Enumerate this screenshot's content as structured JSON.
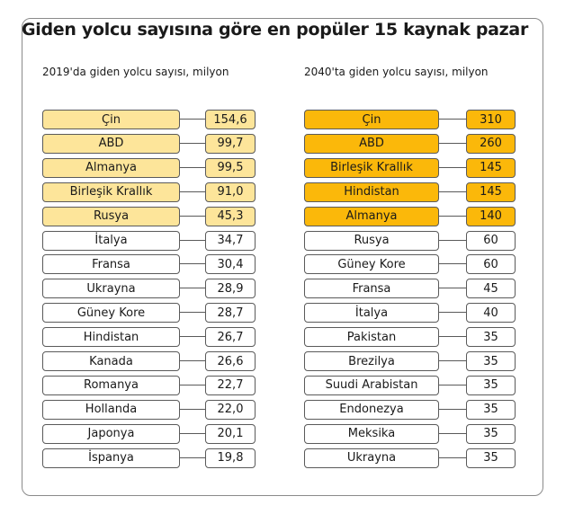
{
  "title": "Giden yolcu sayısına göre en popüler 15 kaynak pazar",
  "chart_data": [
    {
      "type": "table",
      "title": "2019'da giden yolcu sayısı, milyon",
      "highlight_color": "#FDE59A",
      "highlight_count": 5,
      "categories": [
        "Çin",
        "ABD",
        "Almanya",
        "Birleşik Krallık",
        "Rusya",
        "İtalya",
        "Fransa",
        "Ukrayna",
        "Güney Kore",
        "Hindistan",
        "Kanada",
        "Romanya",
        "Hollanda",
        "Japonya",
        "İspanya"
      ],
      "labels": [
        "154,6",
        "99,7",
        "99,5",
        "91,0",
        "45,3",
        "34,7",
        "30,4",
        "28,9",
        "28,7",
        "26,7",
        "26,6",
        "22,7",
        "22,0",
        "20,1",
        "19,8"
      ],
      "values": [
        154.6,
        99.7,
        99.5,
        91.0,
        45.3,
        34.7,
        30.4,
        28.9,
        28.7,
        26.7,
        26.6,
        22.7,
        22.0,
        20.1,
        19.8
      ]
    },
    {
      "type": "table",
      "title": "2040'ta giden yolcu sayısı, milyon",
      "highlight_color": "#FBB80A",
      "highlight_count": 5,
      "categories": [
        "Çin",
        "ABD",
        "Birleşik Krallık",
        "Hindistan",
        "Almanya",
        "Rusya",
        "Güney Kore",
        "Fransa",
        "İtalya",
        "Pakistan",
        "Brezilya",
        "Suudi Arabistan",
        "Endonezya",
        "Meksika",
        "Ukrayna"
      ],
      "labels": [
        "310",
        "260",
        "145",
        "145",
        "140",
        "60",
        "60",
        "45",
        "40",
        "35",
        "35",
        "35",
        "35",
        "35",
        "35"
      ],
      "values": [
        310,
        260,
        145,
        145,
        140,
        60,
        60,
        45,
        40,
        35,
        35,
        35,
        35,
        35,
        35
      ]
    }
  ]
}
